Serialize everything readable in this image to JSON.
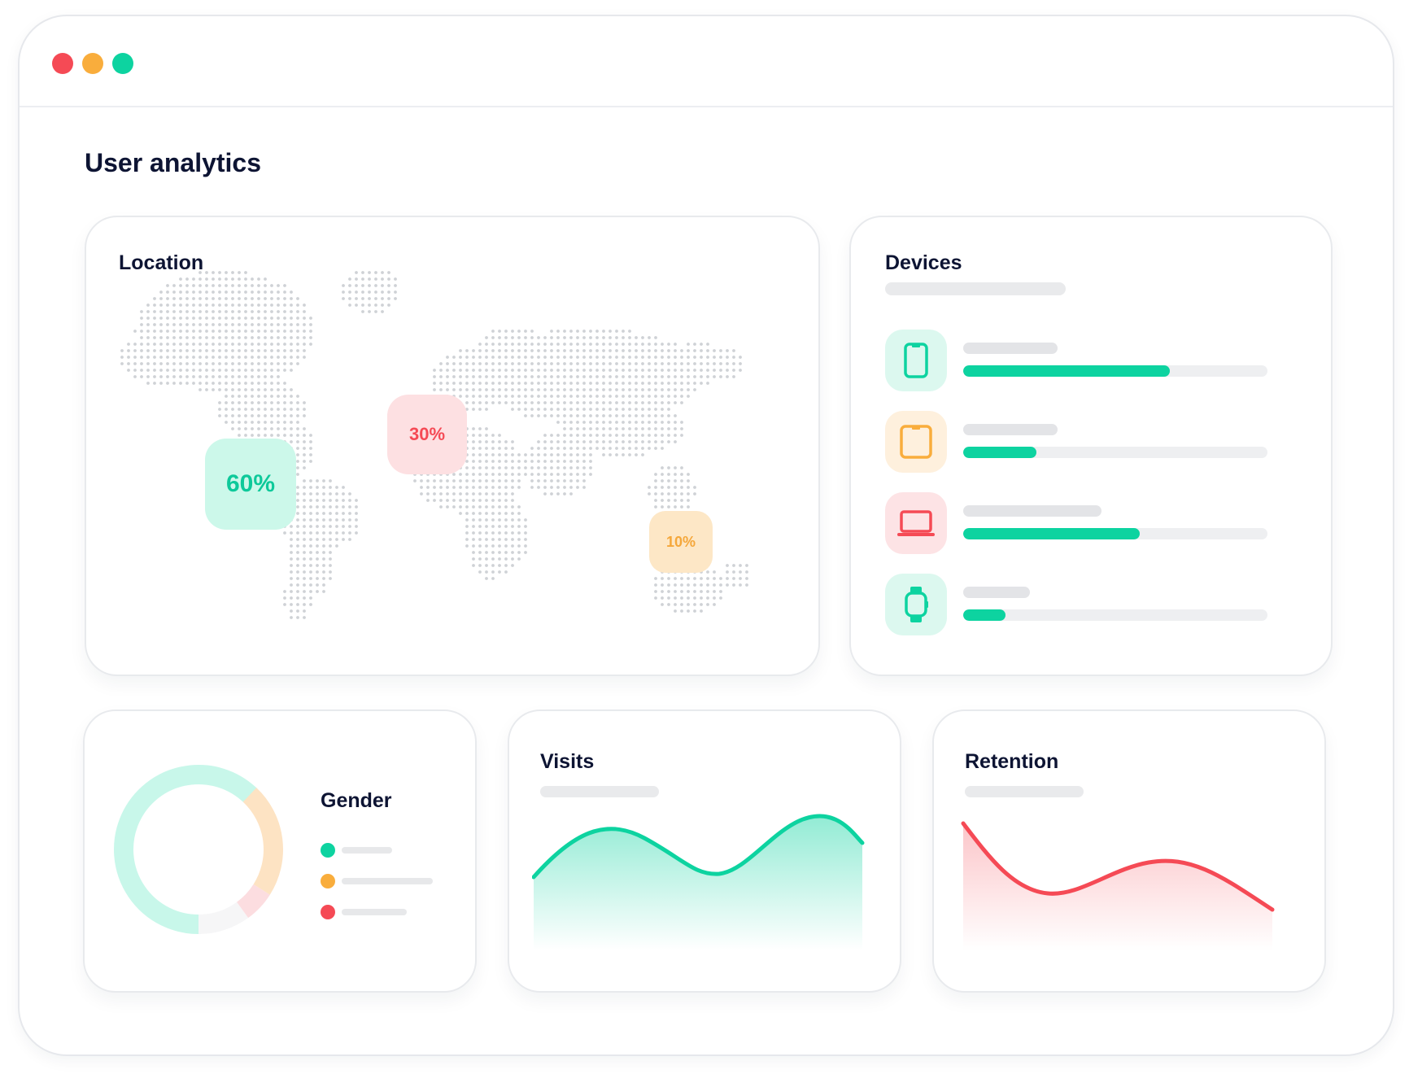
{
  "window": {
    "controls": [
      {
        "name": "close",
        "color": "#f54a55"
      },
      {
        "name": "minimize",
        "color": "#f9ad3c"
      },
      {
        "name": "maximize",
        "color": "#0dd3a0"
      }
    ]
  },
  "page": {
    "title": "User analytics"
  },
  "location": {
    "title": "Location",
    "badges": [
      {
        "label": "60%",
        "value": 60,
        "color": "#0dc99a",
        "bg": "#ccf8ea"
      },
      {
        "label": "30%",
        "value": 30,
        "color": "#f54a55",
        "bg": "#fde0e2"
      },
      {
        "label": "10%",
        "value": 10,
        "color": "#f5a73a",
        "bg": "#fde7c6"
      }
    ]
  },
  "devices": {
    "title": "Devices",
    "items": [
      {
        "icon": "smartphone-icon",
        "color": "#0dd3a0",
        "bg": "#dcf8ef",
        "fill_fraction": 0.68,
        "bar_color": "#0dd3a0"
      },
      {
        "icon": "tablet-icon",
        "color": "#f9ad3c",
        "bg": "#fef0dd",
        "fill_fraction": 0.24,
        "bar_color": "#0dd3a0"
      },
      {
        "icon": "laptop-icon",
        "color": "#f54a55",
        "bg": "#fde3e5",
        "fill_fraction": 0.58,
        "bar_color": "#0dd3a0"
      },
      {
        "icon": "smartwatch-icon",
        "color": "#0dd3a0",
        "bg": "#dcf8ef",
        "fill_fraction": 0.14,
        "bar_color": "#0dd3a0"
      }
    ]
  },
  "gender": {
    "title": "Gender",
    "segments": [
      {
        "color": "#c8f7ea",
        "fraction": 0.62
      },
      {
        "color": "#fde3c3",
        "fraction": 0.22
      },
      {
        "color": "#fcdde0",
        "fraction": 0.06
      },
      {
        "color": "#f6f6f7",
        "fraction": 0.1
      }
    ],
    "legend": [
      {
        "color": "#0dd3a0"
      },
      {
        "color": "#f9ad3c"
      },
      {
        "color": "#f54a55"
      }
    ]
  },
  "visits": {
    "title": "Visits",
    "color": "#0dd3a0"
  },
  "retention": {
    "title": "Retention",
    "color": "#f54a55"
  }
}
